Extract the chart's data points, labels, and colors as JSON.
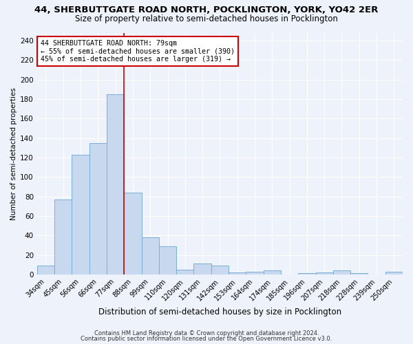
{
  "title1": "44, SHERBUTTGATE ROAD NORTH, POCKLINGTON, YORK, YO42 2ER",
  "title2": "Size of property relative to semi-detached houses in Pocklington",
  "xlabel": "Distribution of semi-detached houses by size in Pocklington",
  "ylabel": "Number of semi-detached properties",
  "footnote1": "Contains HM Land Registry data © Crown copyright and database right 2024.",
  "footnote2": "Contains public sector information licensed under the Open Government Licence v3.0.",
  "bar_labels": [
    "34sqm",
    "45sqm",
    "56sqm",
    "66sqm",
    "77sqm",
    "88sqm",
    "99sqm",
    "110sqm",
    "120sqm",
    "131sqm",
    "142sqm",
    "153sqm",
    "164sqm",
    "174sqm",
    "185sqm",
    "196sqm",
    "207sqm",
    "218sqm",
    "228sqm",
    "239sqm",
    "250sqm"
  ],
  "bar_values": [
    9,
    77,
    123,
    135,
    185,
    84,
    38,
    29,
    5,
    11,
    9,
    2,
    3,
    4,
    0,
    1,
    2,
    4,
    1,
    0,
    3
  ],
  "bar_color": "#c8d8ee",
  "bar_edge_color": "#7aaed6",
  "highlight_bar_index": 4,
  "highlight_bar_edge_color": "#cc0000",
  "ylim": [
    0,
    248
  ],
  "yticks": [
    0,
    20,
    40,
    60,
    80,
    100,
    120,
    140,
    160,
    180,
    200,
    220,
    240
  ],
  "annotation_text1": "44 SHERBUTTGATE ROAD NORTH: 79sqm",
  "annotation_text2": "← 55% of semi-detached houses are smaller (390)",
  "annotation_text3": "45% of semi-detached houses are larger (319) →",
  "background_color": "#eef2fa",
  "grid_color": "#ffffff",
  "title1_fontsize": 9.5,
  "title2_fontsize": 8.5
}
